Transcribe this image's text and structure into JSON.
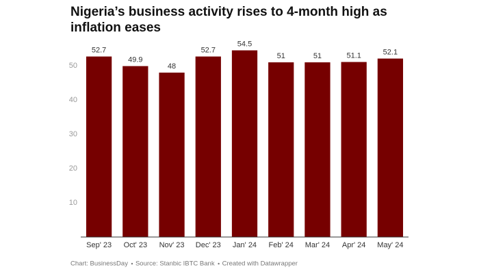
{
  "chart_data": {
    "type": "bar",
    "title": "Nigeria’s business activity rises to 4-month high as inflation eases",
    "categories": [
      "Sep' 23",
      "Oct' 23",
      "Nov' 23",
      "Dec' 23",
      "Jan' 24",
      "Feb' 24",
      "Mar' 24",
      "Apr' 24",
      "May' 24"
    ],
    "values": [
      52.7,
      49.9,
      48,
      52.7,
      54.5,
      51,
      51,
      51.1,
      52.1
    ],
    "color": "#760000",
    "ylim": [
      0,
      56
    ],
    "yticks": [
      10,
      20,
      30,
      40,
      50
    ],
    "grid": false,
    "footer": [
      "Chart: BusinessDay",
      "Source: Stanbic IBTC Bank",
      "Created with Datawrapper"
    ]
  }
}
